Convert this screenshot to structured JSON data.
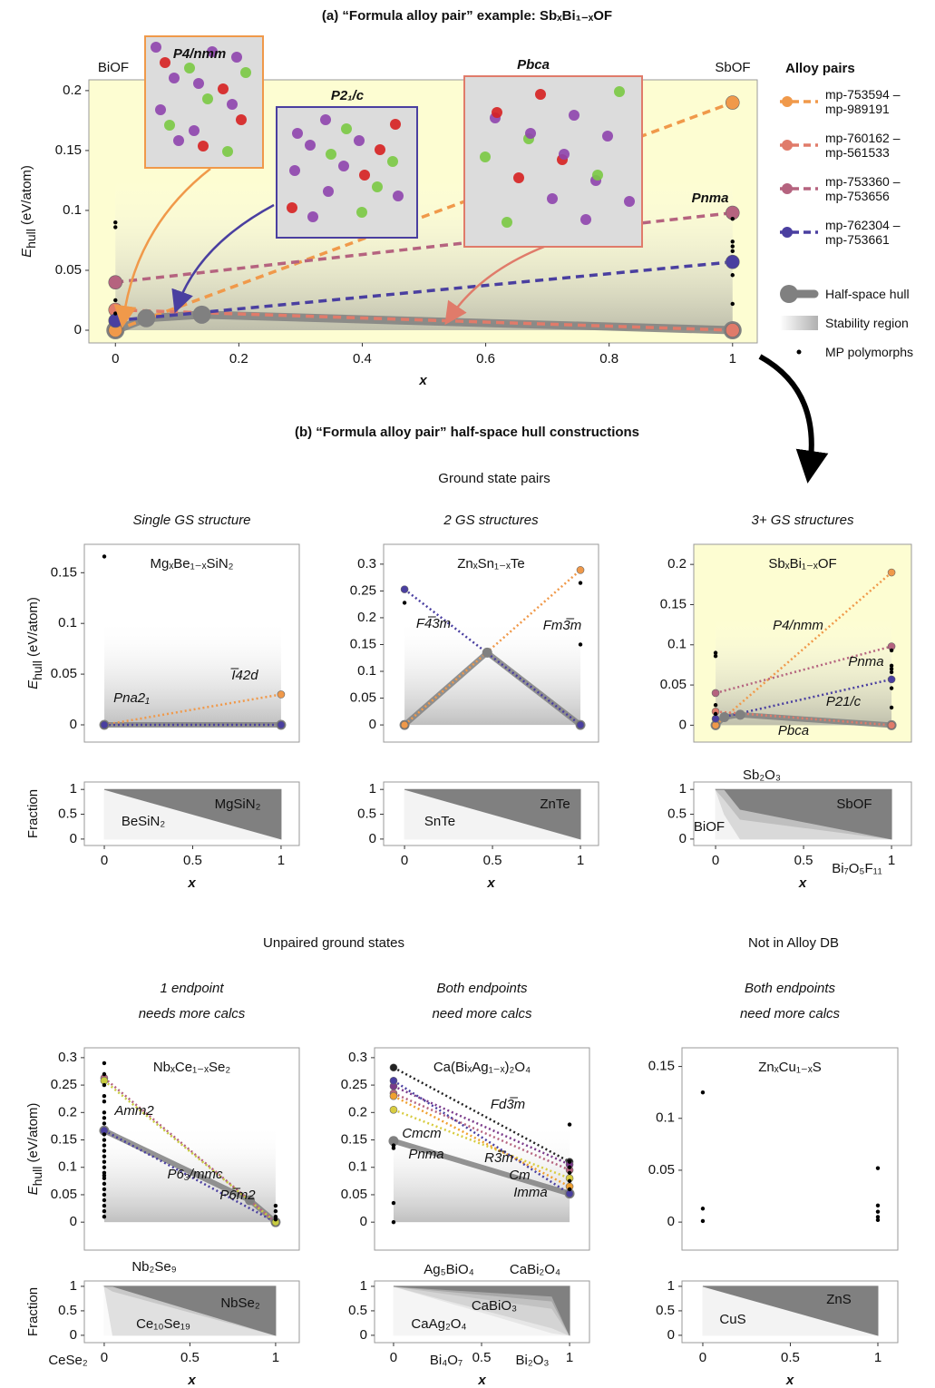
{
  "figure": {
    "b_title": "(b) “Formula alloy pair” half-space hull constructions",
    "sections": [
      "Ground state pairs",
      "Unpaired ground states",
      "Not in Alloy DB"
    ]
  },
  "chart_data": [
    {
      "type": "line",
      "title": "(a) “Formula alloy pair” example: SbₓBi₁₋ₓOF",
      "background": "#fdfdd2",
      "xlim": [
        -0.043,
        1.04
      ],
      "ylim": [
        -0.0106,
        0.209
      ],
      "xticks": [
        0,
        0.2,
        0.4,
        0.6,
        0.8,
        1
      ],
      "yticks": [
        0,
        0.05,
        0.1,
        0.15,
        0.2
      ],
      "xlabel": "x",
      "ylabel": [
        "E",
        "hull",
        " (eV/atom)"
      ],
      "endpoint_labels": [
        "BiOF",
        "SbOF"
      ],
      "annotations": [
        {
          "text": "P4/nmm",
          "color": "#f0994a"
        },
        {
          "text": "P2₁/c",
          "color": "#4a3fa0"
        },
        {
          "text": "Pbca",
          "color": "#e07b6a"
        },
        {
          "text": "Pnma",
          "color": "#b5637f"
        }
      ],
      "legend": {
        "title": "Alloy pairs"
      },
      "series": [
        {
          "name": "mp-753594 – mp-989191",
          "color": "#f0994a",
          "x": [
            0,
            1
          ],
          "values": [
            0,
            0.19
          ]
        },
        {
          "name": "mp-760162 – mp-561533",
          "color": "#e07b6a",
          "x": [
            0,
            1
          ],
          "values": [
            0.017,
            0
          ]
        },
        {
          "name": "mp-753360 – mp-753656",
          "color": "#b5637f",
          "x": [
            0,
            1
          ],
          "values": [
            0.04,
            0.098
          ]
        },
        {
          "name": "mp-762304 – mp-753661",
          "color": "#4a3fa0",
          "x": [
            0,
            1
          ],
          "values": [
            0.008,
            0.057
          ]
        }
      ],
      "hull": {
        "name": "Half-space hull",
        "color": "#808080",
        "x": [
          0,
          0.05,
          0.14,
          1
        ],
        "values": [
          0,
          0.01,
          0.013,
          0
        ]
      },
      "stability_region": {
        "name": "Stability region"
      },
      "polymorphs": {
        "name": "MP polymorphs",
        "x": [
          0,
          0,
          0,
          0,
          1,
          1,
          1,
          1,
          1,
          1
        ],
        "values": [
          0.09,
          0.086,
          0.025,
          0.014,
          0.093,
          0.074,
          0.07,
          0.066,
          0.046,
          0.022
        ]
      }
    },
    {
      "type": "line",
      "title": "MgₓBe₁₋ₓSiN₂",
      "subtitle": [
        "Single GS structure"
      ],
      "xlim": [
        -0.113,
        1.103
      ],
      "ylim": [
        -0.017,
        0.178
      ],
      "yticks": [
        0,
        0.05,
        0.1,
        0.15
      ],
      "ylabel": [
        "E",
        "hull",
        " (eV/atom)"
      ],
      "series": [
        {
          "name": "I̅42d",
          "color": "#f0994a",
          "x": [
            0,
            1
          ],
          "values": [
            0,
            0.03
          ]
        },
        {
          "name": "Pna2₁",
          "color": "#4a3fa0",
          "x": [
            0,
            1
          ],
          "values": [
            0,
            0
          ]
        }
      ],
      "hull": {
        "color": "#808080",
        "x": [
          0,
          1
        ],
        "values": [
          0,
          0
        ]
      },
      "polymorphs": {
        "x": [
          0
        ],
        "values": [
          0.166
        ]
      }
    },
    {
      "type": "area",
      "xlim": [
        -0.113,
        1.103
      ],
      "ylim": [
        -0.13,
        1.15
      ],
      "xticks": [
        0,
        0.5,
        1
      ],
      "yticks": [
        0,
        0.5,
        1
      ],
      "xlabel": "x",
      "ylabel": "Fraction",
      "x": [
        0,
        1
      ],
      "series": [
        {
          "name": "BeSiN₂",
          "color": "#f3f3f3",
          "values": [
            1,
            0
          ]
        },
        {
          "name": "MgSiN₂",
          "color": "#808080",
          "values": [
            0,
            1
          ]
        }
      ]
    },
    {
      "type": "line",
      "title": "ZnₓSn₁₋ₓTe",
      "subtitle": [
        "2 GS structures"
      ],
      "xlim": [
        -0.119,
        1.103
      ],
      "ylim": [
        -0.032,
        0.337
      ],
      "yticks": [
        0,
        0.05,
        0.1,
        0.15,
        0.2,
        0.25,
        0.3
      ],
      "series": [
        {
          "name": "F4̅3m",
          "color": "#4a3fa0",
          "x": [
            0,
            1
          ],
          "values": [
            0.253,
            0
          ]
        },
        {
          "name": "Fm3̅m",
          "color": "#f0994a",
          "x": [
            0,
            1
          ],
          "values": [
            0,
            0.289
          ]
        }
      ],
      "hull": {
        "color": "#808080",
        "x": [
          0,
          0.47,
          1
        ],
        "values": [
          0,
          0.135,
          0
        ]
      },
      "polymorphs": {
        "x": [
          0,
          1,
          1
        ],
        "values": [
          0.228,
          0.265,
          0.15
        ]
      }
    },
    {
      "type": "area",
      "xlim": [
        -0.119,
        1.103
      ],
      "ylim": [
        -0.13,
        1.15
      ],
      "xticks": [
        0,
        0.5,
        1
      ],
      "yticks": [
        0,
        0.5,
        1
      ],
      "xlabel": "x",
      "x": [
        0,
        1
      ],
      "series": [
        {
          "name": "SnTe",
          "color": "#f3f3f3",
          "values": [
            1,
            0
          ]
        },
        {
          "name": "ZnTe",
          "color": "#808080",
          "values": [
            0,
            1
          ]
        }
      ]
    },
    {
      "type": "line",
      "title": "SbₓBi₁₋ₓOF",
      "subtitle": [
        "3+ GS structures"
      ],
      "background": "#fdfdd2",
      "xlim": [
        -0.124,
        1.113
      ],
      "ylim": [
        -0.021,
        0.225
      ],
      "yticks": [
        0,
        0.05,
        0.1,
        0.15,
        0.2
      ],
      "series": [
        {
          "name": "P4/nmm",
          "color": "#f0994a",
          "x": [
            0,
            1
          ],
          "values": [
            0,
            0.19
          ]
        },
        {
          "name": "Pnma",
          "color": "#b5637f",
          "x": [
            0,
            1
          ],
          "values": [
            0.04,
            0.098
          ]
        },
        {
          "name": "P21/c",
          "color": "#4a3fa0",
          "x": [
            0,
            1
          ],
          "values": [
            0.008,
            0.057
          ]
        },
        {
          "name": "Pbca",
          "color": "#e07b6a",
          "x": [
            0,
            1
          ],
          "values": [
            0.017,
            0
          ]
        }
      ],
      "hull": {
        "color": "#808080",
        "x": [
          0,
          0.05,
          0.14,
          1
        ],
        "values": [
          0,
          0.01,
          0.013,
          0
        ]
      },
      "polymorphs": {
        "x": [
          0,
          0,
          0,
          0,
          1,
          1,
          1,
          1,
          1,
          1
        ],
        "values": [
          0.09,
          0.086,
          0.025,
          0.014,
          0.093,
          0.074,
          0.07,
          0.066,
          0.046,
          0.022
        ]
      }
    },
    {
      "type": "area",
      "xlim": [
        -0.124,
        1.113
      ],
      "ylim": [
        -0.13,
        1.15
      ],
      "xticks": [
        0,
        0.5,
        1
      ],
      "yticks": [
        0,
        0.5,
        1
      ],
      "xlabel": "x",
      "x": [
        0,
        0.05,
        0.14,
        1
      ],
      "series": [
        {
          "name": "BiOF",
          "color": "#f3f3f3",
          "values": [
            1,
            0.5,
            0,
            0
          ]
        },
        {
          "name": "Bi₇O₅F₁₁",
          "color": "#d9d9d9",
          "values": [
            0,
            0.3,
            0.4,
            0
          ]
        },
        {
          "name": "Sb₂O₃",
          "color": "#bfbfbf",
          "values": [
            0,
            0.2,
            0.2,
            0
          ]
        },
        {
          "name": "SbOF",
          "color": "#808080",
          "values": [
            0,
            0,
            0.4,
            1
          ]
        }
      ]
    },
    {
      "type": "line",
      "title": "NbₓCe₁₋ₓSe₂",
      "subtitle": [
        "1 endpoint",
        "needs more calcs"
      ],
      "xlim": [
        -0.116,
        1.138
      ],
      "ylim": [
        -0.051,
        0.318
      ],
      "yticks": [
        0,
        0.05,
        0.1,
        0.15,
        0.2,
        0.25,
        0.3
      ],
      "ylabel": [
        "E",
        "hull",
        " (eV/atom)"
      ],
      "series": [
        {
          "name": "Amm2",
          "color": "#4a3fa0",
          "x": [
            0,
            1
          ],
          "values": [
            0.167,
            0
          ]
        },
        {
          "name": "P6₃/mmc",
          "color": "#b5637f",
          "x": [
            0,
            1
          ],
          "values": [
            0.263,
            0
          ]
        },
        {
          "name": "P6̅m2",
          "color": "#c8cc40",
          "x": [
            0,
            1
          ],
          "values": [
            0.258,
            0
          ]
        }
      ],
      "hull": {
        "color": "#808080",
        "x": [
          0,
          0.85,
          1
        ],
        "values": [
          0.167,
          0.04,
          0
        ]
      },
      "polymorphs": {
        "x": [
          0,
          0,
          0,
          0,
          0,
          0,
          0,
          0,
          0,
          0,
          0,
          0,
          0,
          0,
          0,
          0,
          0,
          0,
          0,
          0,
          0,
          0,
          0,
          0,
          0,
          1,
          1,
          1,
          1
        ],
        "values": [
          0.29,
          0.27,
          0.25,
          0.23,
          0.22,
          0.2,
          0.19,
          0.18,
          0.16,
          0.15,
          0.14,
          0.13,
          0.12,
          0.11,
          0.1,
          0.09,
          0.085,
          0.08,
          0.07,
          0.06,
          0.05,
          0.04,
          0.03,
          0.02,
          0.01,
          0.03,
          0.02,
          0.01,
          0.005
        ]
      }
    },
    {
      "type": "area",
      "xlim": [
        -0.116,
        1.138
      ],
      "ylim": [
        -0.15,
        1.11
      ],
      "xticks": [
        0,
        0.5,
        1
      ],
      "yticks": [
        0,
        0.5,
        1
      ],
      "xlabel": "x",
      "ylabel": "Fraction",
      "x": [
        0,
        0.05,
        1
      ],
      "series": [
        {
          "name": "CeSe₂",
          "color": "#fafafa",
          "values": [
            1,
            0,
            0
          ]
        },
        {
          "name": "Ce₁₀Se₁₉",
          "color": "#e0e0e0",
          "values": [
            0,
            0.9,
            0
          ]
        },
        {
          "name": "Nb₂Se₉",
          "color": "#c8c8c8",
          "values": [
            0,
            0.1,
            0
          ]
        },
        {
          "name": "NbSe₂",
          "color": "#808080",
          "values": [
            0,
            0,
            1
          ]
        }
      ]
    },
    {
      "type": "line",
      "title": "Ca(BiₓAg₁₋ₓ)₂O₄",
      "subtitle": [
        "Both endpoints",
        "need more calcs"
      ],
      "xlim": [
        -0.108,
        1.113
      ],
      "ylim": [
        -0.051,
        0.318
      ],
      "yticks": [
        0,
        0.05,
        0.1,
        0.15,
        0.2,
        0.25,
        0.3
      ],
      "series": [
        {
          "name": "Fd3̅m",
          "color": "#222222",
          "x": [
            0,
            1
          ],
          "values": [
            0.282,
            0.11
          ]
        },
        {
          "name": "Cmcm",
          "color": "#7a3a8a",
          "x": [
            0,
            1
          ],
          "values": [
            0.248,
            0.105
          ]
        },
        {
          "name": "Pnma",
          "color": "#d8cc40",
          "x": [
            0,
            1
          ],
          "values": [
            0.205,
            0.08
          ]
        },
        {
          "name": "R3̅m",
          "color": "#b5637f",
          "x": [
            0,
            1
          ],
          "values": [
            0.235,
            0.095
          ]
        },
        {
          "name": "Cm",
          "color": "#f0a030",
          "x": [
            0,
            1
          ],
          "values": [
            0.23,
            0.065
          ]
        },
        {
          "name": "Imma",
          "color": "#4a3fa0",
          "x": [
            0,
            1
          ],
          "values": [
            0.258,
            0.052
          ]
        }
      ],
      "hull": {
        "color": "#808080",
        "x": [
          0,
          1
        ],
        "values": [
          0.148,
          0.052
        ]
      },
      "polymorphs": {
        "x": [
          0,
          0,
          0,
          0,
          1,
          1,
          1,
          1,
          1,
          1
        ],
        "values": [
          0.135,
          0.14,
          0.035,
          0,
          0.178,
          0.11,
          0.1,
          0.09,
          0.075,
          0.06
        ]
      }
    },
    {
      "type": "area",
      "xlim": [
        -0.108,
        1.113
      ],
      "ylim": [
        -0.15,
        1.11
      ],
      "xticks": [
        0,
        0.5,
        1
      ],
      "yticks": [
        0,
        0.5,
        1
      ],
      "xlabel": "x",
      "x": [
        0,
        0.9,
        1
      ],
      "series": [
        {
          "name": "CaAg₂O₄",
          "color": "#f5f5f5",
          "values": [
            1,
            0.05,
            0
          ]
        },
        {
          "name": "Bi₄O₇",
          "color": "#e6e6e6",
          "values": [
            0,
            0.1,
            0
          ]
        },
        {
          "name": "CaBiO₃",
          "color": "#d4d4d4",
          "values": [
            0,
            0.4,
            0
          ]
        },
        {
          "name": "Ag₅BiO₄",
          "color": "#c2c2c2",
          "values": [
            0,
            0.15,
            0
          ]
        },
        {
          "name": "Bi₂O₃",
          "color": "#a8a8a8",
          "values": [
            0,
            0.1,
            0
          ]
        },
        {
          "name": "CaBi₂O₄",
          "color": "#808080",
          "values": [
            0,
            0.2,
            1
          ]
        }
      ]
    },
    {
      "type": "line",
      "title": "ZnₓCu₁₋ₓS",
      "subtitle": [
        "Both endpoints",
        "need more calcs"
      ],
      "xlim": [
        -0.119,
        1.114
      ],
      "ylim": [
        -0.027,
        0.168
      ],
      "yticks": [
        0,
        0.05,
        0.1,
        0.15
      ],
      "series": [],
      "polymorphs": {
        "x": [
          0,
          0,
          0,
          1,
          1,
          1,
          1,
          1
        ],
        "values": [
          0.125,
          0.013,
          0.001,
          0.052,
          0.016,
          0.01,
          0.005,
          0.002
        ]
      }
    },
    {
      "type": "area",
      "xlim": [
        -0.119,
        1.114
      ],
      "ylim": [
        -0.15,
        1.11
      ],
      "xticks": [
        0,
        0.5,
        1
      ],
      "yticks": [
        0,
        0.5,
        1
      ],
      "xlabel": "x",
      "x": [
        0,
        1
      ],
      "series": [
        {
          "name": "CuS",
          "color": "#f3f3f3",
          "values": [
            1,
            0
          ]
        },
        {
          "name": "ZnS",
          "color": "#808080",
          "values": [
            0,
            1
          ]
        }
      ]
    }
  ]
}
